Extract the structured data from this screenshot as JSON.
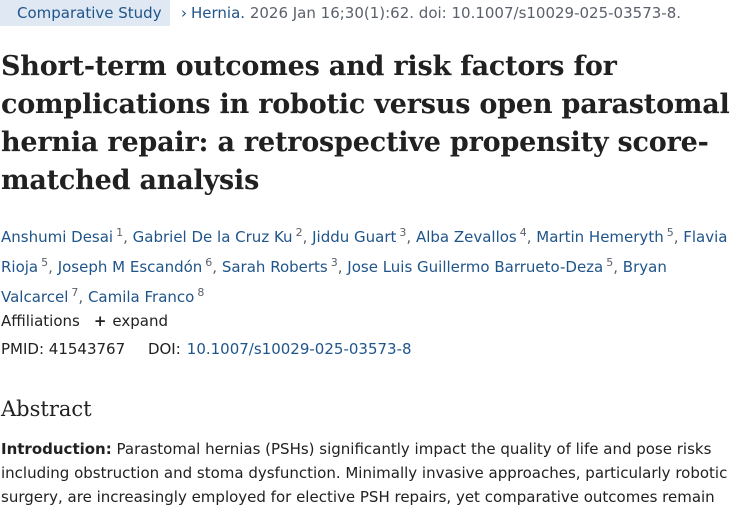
{
  "header": {
    "badge": "Comparative Study",
    "journal_link": "Hernia.",
    "citation": " 2026 Jan 16;30(1):62. doi: 10.1007/s10029-025-03573-8."
  },
  "article": {
    "title": "Short-term outcomes and risk factors for complications in robotic versus open parastomal hernia repair: a retrospective propensity score-matched analysis"
  },
  "authors": [
    {
      "name": "Anshumi Desai",
      "aff": "1"
    },
    {
      "name": "Gabriel De la Cruz Ku",
      "aff": "2"
    },
    {
      "name": "Jiddu Guart",
      "aff": "3"
    },
    {
      "name": "Alba Zevallos",
      "aff": "4"
    },
    {
      "name": "Martin Hemeryth",
      "aff": "5"
    },
    {
      "name": "Flavia Rioja",
      "aff": "5"
    },
    {
      "name": "Joseph M Escandón",
      "aff": "6"
    },
    {
      "name": "Sarah Roberts",
      "aff": "3"
    },
    {
      "name": "Jose Luis Guillermo Barrueto-Deza",
      "aff": "5"
    },
    {
      "name": "Bryan Valcarcel",
      "aff": "7"
    },
    {
      "name": "Camila Franco",
      "aff": "8"
    }
  ],
  "affiliations": {
    "label": "Affiliations",
    "expand_label": "expand"
  },
  "identifiers": {
    "pmid_label": "PMID:",
    "pmid": "41543767",
    "doi_label": "DOI:",
    "doi": "10.1007/s10029-025-03573-8"
  },
  "abstract": {
    "heading": "Abstract",
    "intro_label": "Introduction:",
    "intro_text": "Parastomal hernias (PSHs) significantly impact the quality of life and pose risks including obstruction and stoma dysfunction. Minimally invasive approaches, particularly robotic surgery, are increasingly employed for elective PSH repairs, yet comparative outcomes remain"
  }
}
